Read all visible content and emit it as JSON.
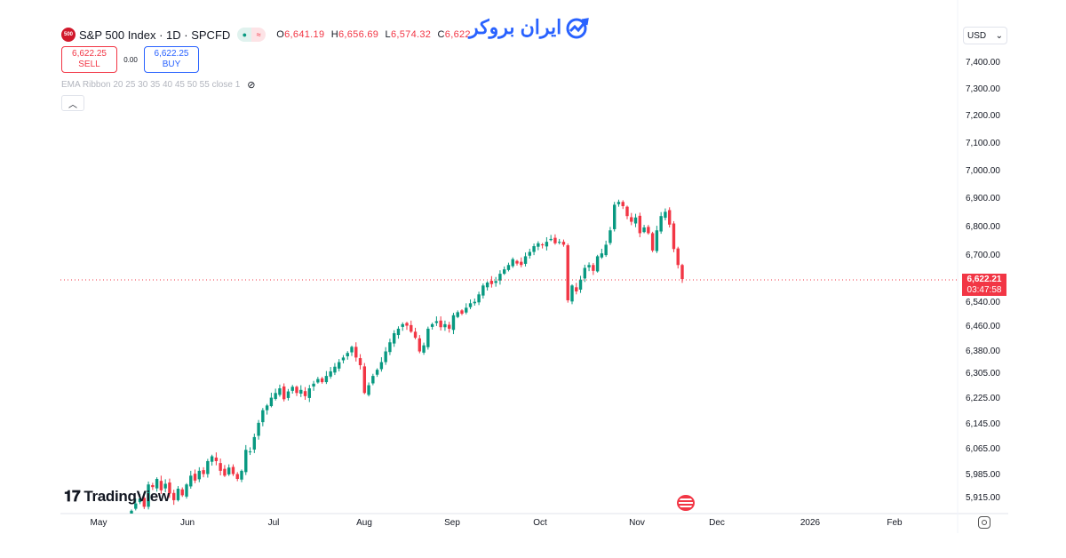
{
  "header": {
    "symbol_logo": "500",
    "title": "S&P 500 Index · 1D · SPCFD",
    "ohlc": {
      "o_label": "O",
      "o": "6,641.19",
      "h_label": "H",
      "h": "6,656.69",
      "l_label": "L",
      "l": "6,574.32",
      "c_label": "C",
      "c": "6,622."
    },
    "status_icons": [
      "market-open-dot-icon",
      "delayed-data-icon"
    ]
  },
  "trade": {
    "sell_price": "6,622.25",
    "sell_label": "SELL",
    "spread": "0.00",
    "buy_price": "6,622.25",
    "buy_label": "BUY"
  },
  "indicator": {
    "label": "EMA Ribbon 20 25 30 35 40 45 50 55 close 1"
  },
  "brand": {
    "name": "ایران بروکر"
  },
  "currency": "USD",
  "watermark": "TradingView",
  "price_tag": {
    "price": "6,622.21",
    "countdown": "03:47:58"
  },
  "colors": {
    "up": "#089981",
    "down": "#F23645",
    "accent": "#2962FF"
  },
  "chart_data": {
    "type": "candlestick",
    "title": "S&P 500 Index · 1D · SPCFD",
    "scale": "log",
    "ylim": [
      5880,
      7420
    ],
    "y_ticks": [
      "7,400.00",
      "7,300.00",
      "7,200.00",
      "7,100.00",
      "7,000.00",
      "6,900.00",
      "6,800.00",
      "6,700.00",
      "6,540.00",
      "6,460.00",
      "6,380.00",
      "6,305.00",
      "6,225.00",
      "6,145.00",
      "6,065.00",
      "5,985.00",
      "5,915.00"
    ],
    "y_tick_values": [
      7400,
      7300,
      7200,
      7100,
      7000,
      6900,
      6800,
      6700,
      6540,
      6460,
      6380,
      6305,
      6225,
      6145,
      6065,
      5985,
      5915
    ],
    "x_ticks": [
      "May",
      "Jun",
      "Jul",
      "Aug",
      "Sep",
      "Oct",
      "Nov",
      "Dec",
      "2026",
      "Feb"
    ],
    "last_price": 6622.21,
    "closes": [
      5878,
      5900,
      5915,
      5890,
      5958,
      5950,
      5975,
      5940,
      5960,
      5930,
      5910,
      5945,
      5925,
      5958,
      5985,
      5970,
      6000,
      5990,
      6030,
      6045,
      6030,
      6000,
      5985,
      6010,
      5990,
      5975,
      6000,
      6065,
      6060,
      6105,
      6150,
      6190,
      6205,
      6230,
      6245,
      6260,
      6225,
      6250,
      6265,
      6245,
      6255,
      6235,
      6260,
      6275,
      6290,
      6280,
      6300,
      6315,
      6330,
      6345,
      6360,
      6375,
      6395,
      6360,
      6335,
      6245,
      6270,
      6300,
      6320,
      6345,
      6380,
      6410,
      6440,
      6455,
      6470,
      6465,
      6445,
      6425,
      6380,
      6400,
      6455,
      6470,
      6480,
      6460,
      6470,
      6455,
      6500,
      6510,
      6505,
      6525,
      6540,
      6545,
      6570,
      6600,
      6610,
      6605,
      6615,
      6640,
      6655,
      6670,
      6690,
      6675,
      6670,
      6700,
      6715,
      6735,
      6745,
      6740,
      6750,
      6760,
      6745,
      6750,
      6740,
      6550,
      6600,
      6580,
      6620,
      6660,
      6670,
      6650,
      6700,
      6710,
      6740,
      6790,
      6880,
      6890,
      6875,
      6840,
      6820,
      6835,
      6780,
      6800,
      6780,
      6720,
      6790,
      6840,
      6855,
      6810,
      6725,
      6670,
      6622
    ]
  }
}
